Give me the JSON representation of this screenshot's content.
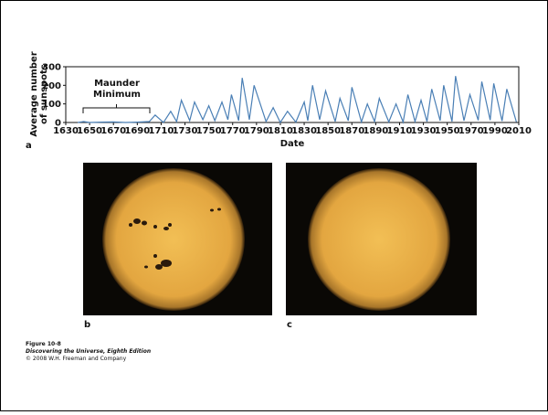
{
  "chart_data": {
    "type": "line",
    "y_label_lines": [
      "Average number",
      "of sunspots"
    ],
    "x_label": "Date",
    "annotation_lines": [
      "Maunder",
      "Minimum"
    ],
    "color": "#4a7fb5",
    "x": [
      1640,
      1645,
      1650,
      1660,
      1670,
      1680,
      1690,
      1700,
      1705,
      1712,
      1718,
      1723,
      1727,
      1734,
      1738,
      1745,
      1750,
      1755,
      1761,
      1766,
      1769,
      1775,
      1778,
      1784,
      1788,
      1798,
      1804,
      1810,
      1816,
      1823,
      1830,
      1833,
      1837,
      1843,
      1848,
      1856,
      1860,
      1867,
      1870,
      1878,
      1883,
      1889,
      1893,
      1901,
      1907,
      1913,
      1917,
      1923,
      1928,
      1933,
      1937,
      1944,
      1947,
      1954,
      1957,
      1964,
      1969,
      1976,
      1979,
      1986,
      1989,
      1996,
      2000,
      2008
    ],
    "values": [
      0,
      5,
      0,
      2,
      3,
      0,
      2,
      5,
      40,
      0,
      60,
      5,
      120,
      10,
      110,
      15,
      90,
      10,
      110,
      15,
      150,
      10,
      240,
      15,
      200,
      5,
      80,
      0,
      60,
      2,
      110,
      10,
      200,
      15,
      170,
      5,
      130,
      10,
      190,
      3,
      100,
      5,
      130,
      3,
      100,
      2,
      150,
      5,
      120,
      5,
      180,
      10,
      200,
      5,
      250,
      10,
      150,
      12,
      220,
      13,
      210,
      8,
      180,
      3
    ],
    "xlim": [
      1630,
      2010
    ],
    "xticks": [
      1630,
      1650,
      1670,
      1690,
      1710,
      1730,
      1750,
      1770,
      1790,
      1810,
      1830,
      1850,
      1870,
      1890,
      1910,
      1930,
      1950,
      1970,
      1990,
      2010
    ],
    "ylim": [
      0,
      300
    ],
    "yticks": [
      0,
      100,
      200,
      300
    ]
  },
  "figure": {
    "panel_labels": [
      "a",
      "b",
      "c"
    ],
    "caption": {
      "number": "Figure 10-8",
      "book": "Discovering the Universe, Eighth Edition",
      "copyright": "© 2008 W.H. Freeman and Company"
    }
  }
}
